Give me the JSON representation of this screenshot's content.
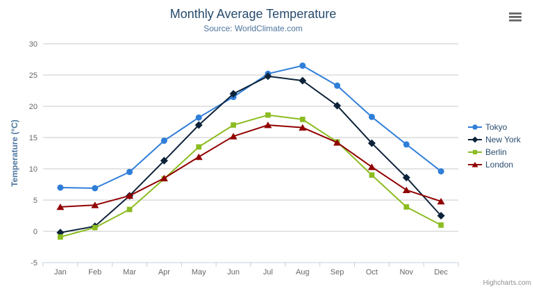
{
  "chart": {
    "title": "Monthly Average Temperature",
    "subtitle": "Source: WorldClimate.com",
    "credits": "Highcharts.com"
  },
  "icons": {
    "export_menu": "hamburger-icon"
  },
  "colors": {
    "title": "#274b6d",
    "subtitle": "#4d759e",
    "axis_title": "#4d759e",
    "tick_label": "#666666",
    "gridline": "#c8c8c8",
    "x_axis_line": "#c0d0e0",
    "legend_text": "#274b6d",
    "credits_text": "#909090",
    "export_icon": "#666666"
  },
  "chart_data": {
    "type": "line",
    "title": "Monthly Average Temperature",
    "subtitle": "Source: WorldClimate.com",
    "categories": [
      "Jan",
      "Feb",
      "Mar",
      "Apr",
      "May",
      "Jun",
      "Jul",
      "Aug",
      "Sep",
      "Oct",
      "Nov",
      "Dec"
    ],
    "xlabel": "",
    "ylabel": "Temperature (°C)",
    "ylim": [
      -5,
      30
    ],
    "ytick_step": 5,
    "yticks": [
      -5,
      0,
      5,
      10,
      15,
      20,
      25,
      30
    ],
    "grid": true,
    "legend_position": "right",
    "series": [
      {
        "name": "Tokyo",
        "color": "#2f7ed8",
        "marker": "circle",
        "values": [
          7.0,
          6.9,
          9.5,
          14.5,
          18.2,
          21.5,
          25.2,
          26.5,
          23.3,
          18.3,
          13.9,
          9.6
        ]
      },
      {
        "name": "New York",
        "color": "#0d233a",
        "marker": "diamond",
        "values": [
          -0.2,
          0.8,
          5.7,
          11.3,
          17.0,
          22.0,
          24.8,
          24.1,
          20.1,
          14.1,
          8.6,
          2.5
        ]
      },
      {
        "name": "Berlin",
        "color": "#8bbc21",
        "marker": "square",
        "values": [
          -0.9,
          0.6,
          3.5,
          8.4,
          13.5,
          17.0,
          18.6,
          17.9,
          14.3,
          9.0,
          3.9,
          1.0
        ]
      },
      {
        "name": "London",
        "color": "#910000",
        "marker": "triangle",
        "values": [
          3.9,
          4.2,
          5.7,
          8.5,
          11.9,
          15.2,
          17.0,
          16.6,
          14.2,
          10.3,
          6.6,
          4.8
        ]
      }
    ]
  }
}
